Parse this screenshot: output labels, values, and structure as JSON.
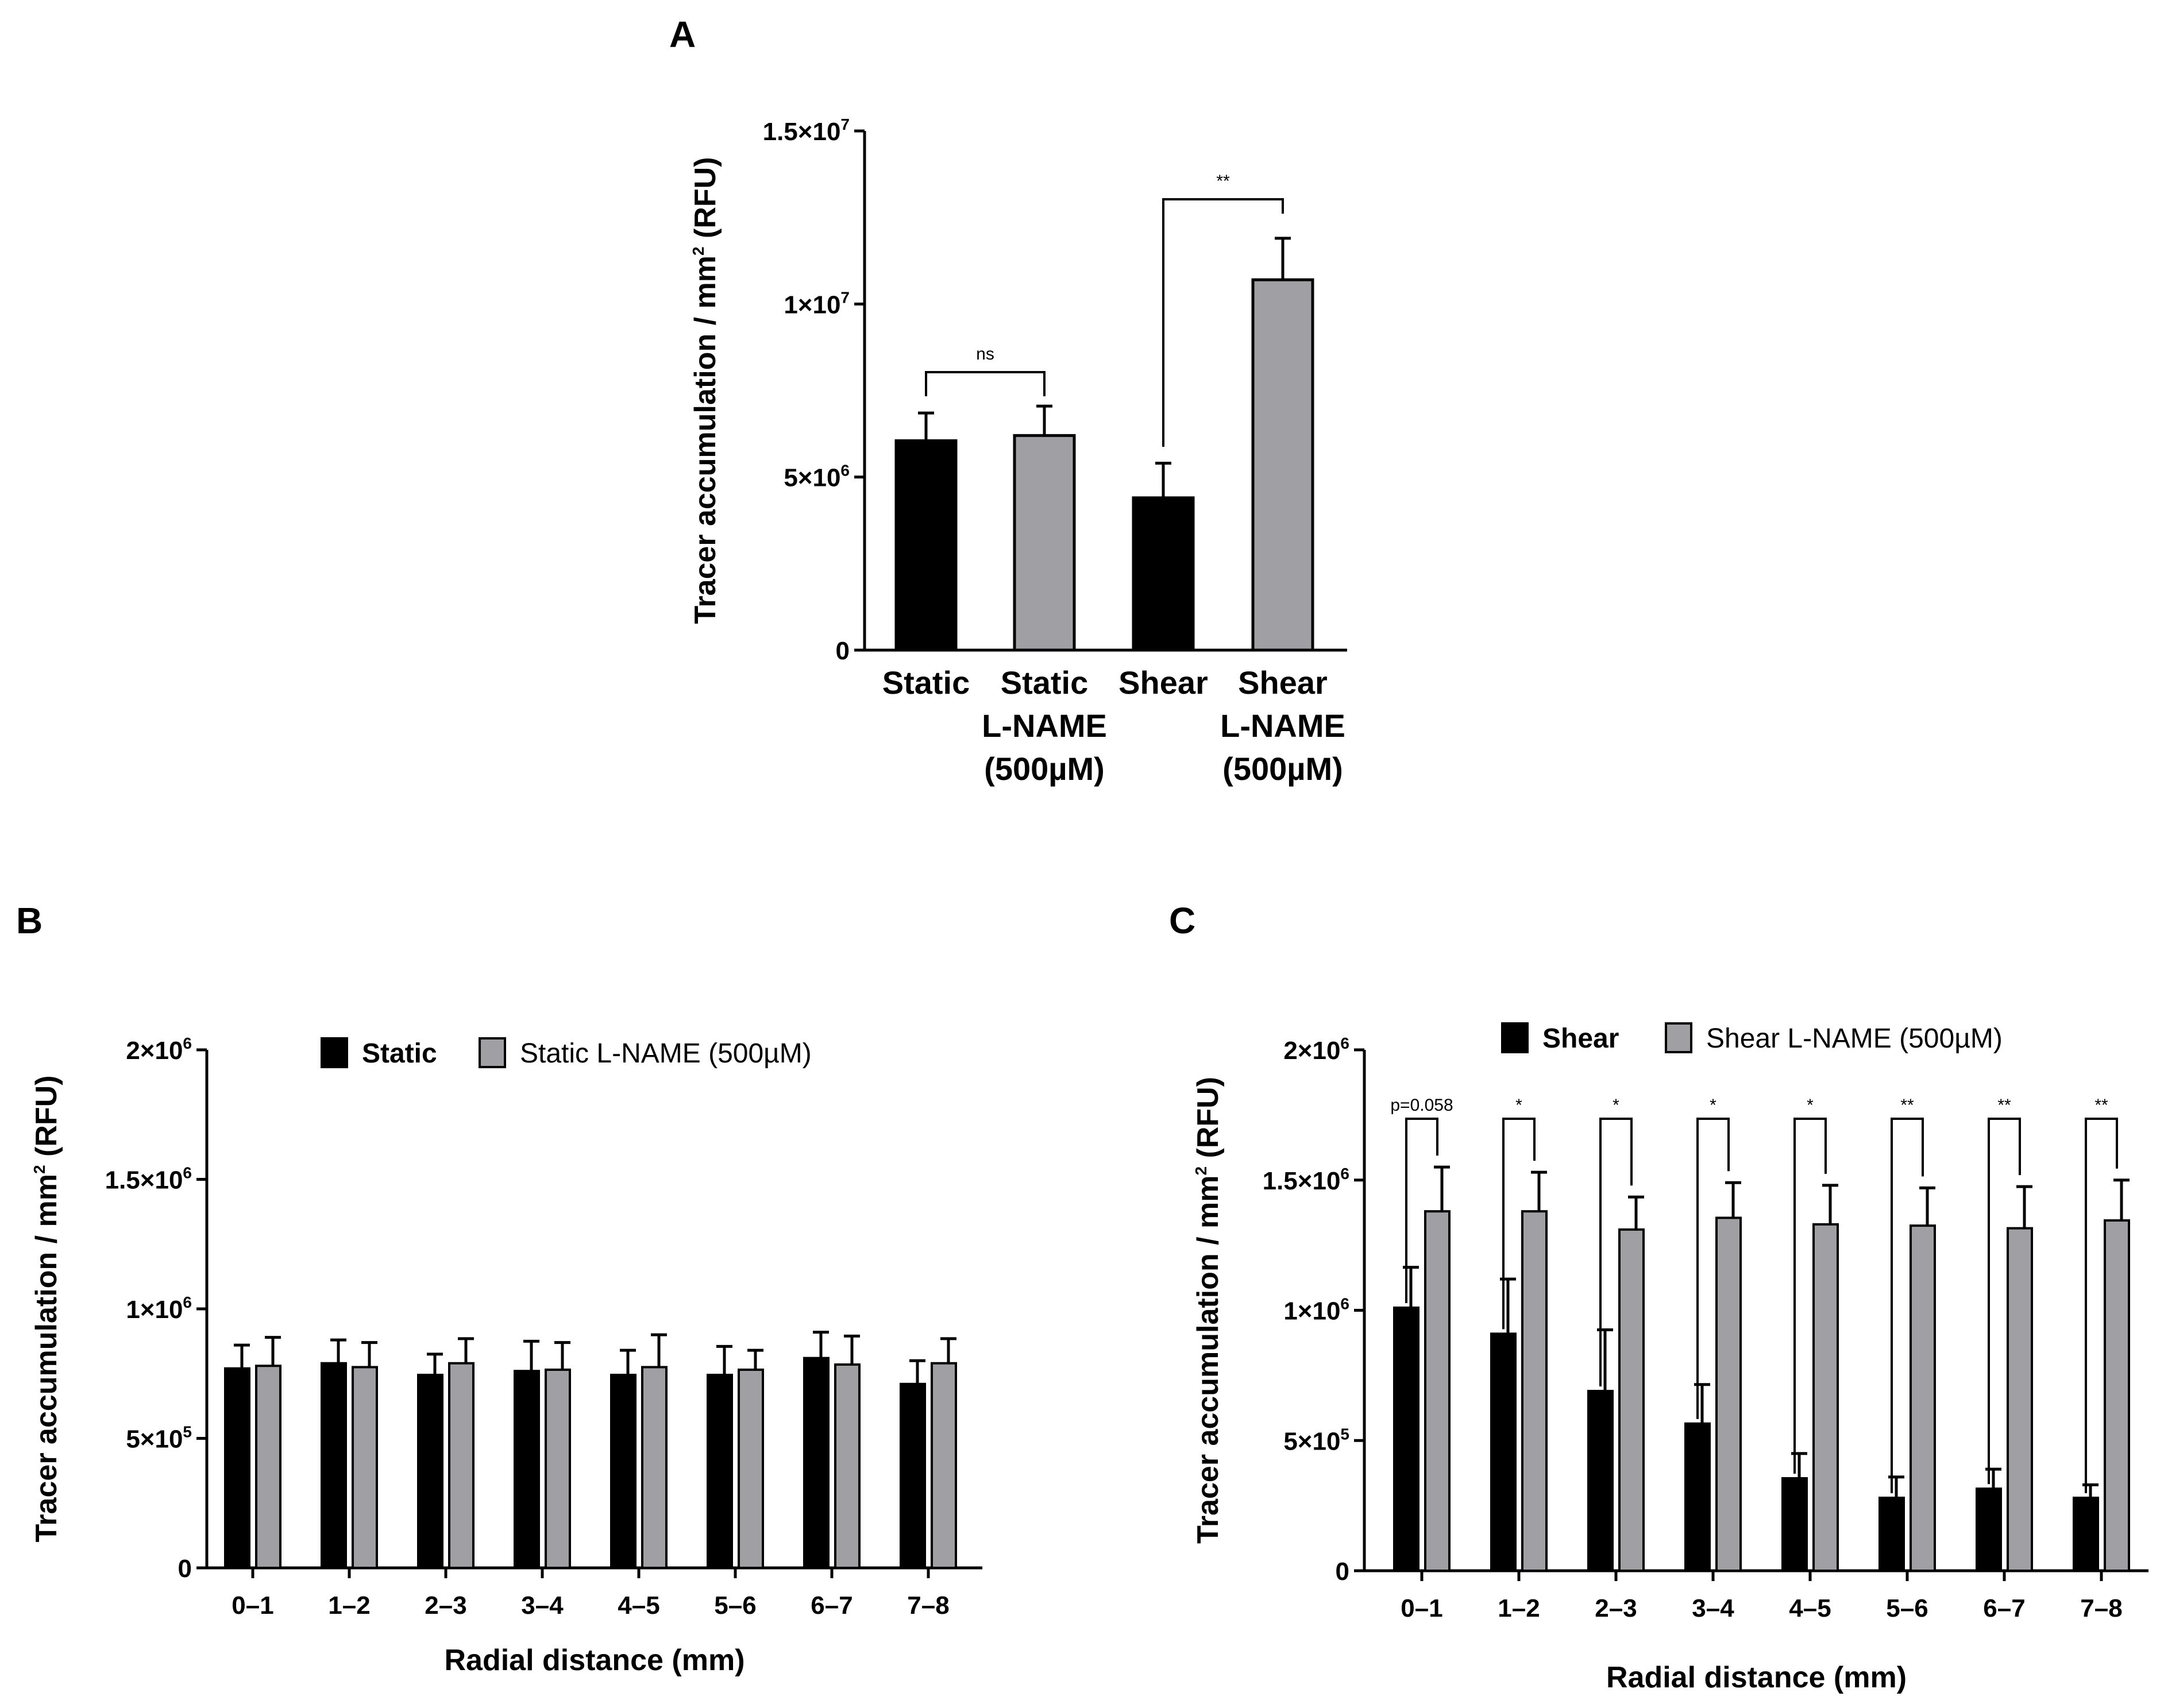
{
  "colors": {
    "series1": "#000000",
    "series2": "#a0a0a4",
    "axis": "#000000"
  },
  "panel_letters": {
    "a": "A",
    "b": "B",
    "c": "C"
  },
  "chart_data": [
    {
      "panel": "A",
      "type": "bar",
      "ylabel_main": "Tracer accumulation / mm",
      "ylabel_sup": "2",
      "ylabel_tail": " (RFU)",
      "ylim": [
        0,
        15000000
      ],
      "yticks": [
        {
          "value": 0,
          "base": "0",
          "exp": ""
        },
        {
          "value": 5000000,
          "base": "5×10",
          "exp": "6"
        },
        {
          "value": 10000000,
          "base": "1×10",
          "exp": "7"
        },
        {
          "value": 15000000,
          "base": "1.5×10",
          "exp": "7"
        }
      ],
      "categories": [
        {
          "lines": [
            "Static"
          ],
          "value": 6050000,
          "error": 800000,
          "color": "#000000"
        },
        {
          "lines": [
            "Static",
            "L-NAME",
            "(500µM)"
          ],
          "value": 6200000,
          "error": 850000,
          "color": "#a0a0a4"
        },
        {
          "lines": [
            "Shear"
          ],
          "value": 4400000,
          "error": 1000000,
          "color": "#000000"
        },
        {
          "lines": [
            "Shear",
            "L-NAME",
            "(500µM)"
          ],
          "value": 10700000,
          "error": 1200000,
          "color": "#a0a0a4"
        }
      ],
      "comparisons": [
        {
          "from": 0,
          "to": 1,
          "label": "ns"
        },
        {
          "from": 2,
          "to": 3,
          "label": "**"
        }
      ]
    },
    {
      "panel": "B",
      "type": "bar",
      "xlabel": "Radial distance (mm)",
      "ylabel_main": "Tracer accumulation / mm",
      "ylabel_sup": "2",
      "ylabel_tail": " (RFU)",
      "ylim": [
        0,
        2000000
      ],
      "yticks": [
        {
          "value": 0,
          "base": "0",
          "exp": ""
        },
        {
          "value": 500000,
          "base": "5×10",
          "exp": "5"
        },
        {
          "value": 1000000,
          "base": "1×10",
          "exp": "6"
        },
        {
          "value": 1500000,
          "base": "1.5×10",
          "exp": "6"
        },
        {
          "value": 2000000,
          "base": "2×10",
          "exp": "6"
        }
      ],
      "categories": [
        "0–1",
        "1–2",
        "2–3",
        "3–4",
        "4–5",
        "5–6",
        "6–7",
        "7–8"
      ],
      "series": [
        {
          "name": "Static",
          "color": "#000000",
          "values": [
            770000,
            790000,
            745000,
            760000,
            745000,
            745000,
            810000,
            710000
          ],
          "errors": [
            90000,
            90000,
            80000,
            115000,
            95000,
            110000,
            100000,
            90000
          ]
        },
        {
          "name": "Static L-NAME (500µM)",
          "color": "#a0a0a4",
          "values": [
            780000,
            775000,
            790000,
            765000,
            775000,
            765000,
            785000,
            790000
          ],
          "errors": [
            110000,
            95000,
            95000,
            105000,
            125000,
            75000,
            110000,
            95000
          ]
        }
      ]
    },
    {
      "panel": "C",
      "type": "bar",
      "xlabel": "Radial distance (mm)",
      "ylabel_main": "Tracer accumulation / mm",
      "ylabel_sup": "2",
      "ylabel_tail": " (RFU)",
      "ylim": [
        0,
        2000000
      ],
      "yticks": [
        {
          "value": 0,
          "base": "0",
          "exp": ""
        },
        {
          "value": 500000,
          "base": "5×10",
          "exp": "5"
        },
        {
          "value": 1000000,
          "base": "1×10",
          "exp": "6"
        },
        {
          "value": 1500000,
          "base": "1.5×10",
          "exp": "6"
        },
        {
          "value": 2000000,
          "base": "2×10",
          "exp": "6"
        }
      ],
      "categories": [
        "0–1",
        "1–2",
        "2–3",
        "3–4",
        "4–5",
        "5–6",
        "6–7",
        "7–8"
      ],
      "series": [
        {
          "name": "Shear",
          "color": "#000000",
          "values": [
            1010000,
            910000,
            690000,
            565000,
            355000,
            280000,
            315000,
            280000
          ],
          "errors": [
            155000,
            210000,
            235000,
            150000,
            95000,
            80000,
            75000,
            50000
          ]
        },
        {
          "name": "Shear L-NAME (500µM)",
          "color": "#a0a0a4",
          "values": [
            1380000,
            1380000,
            1310000,
            1355000,
            1330000,
            1325000,
            1315000,
            1345000
          ],
          "errors": [
            170000,
            150000,
            125000,
            135000,
            150000,
            145000,
            160000,
            155000
          ]
        }
      ],
      "significance": [
        "p=0.058",
        "*",
        "*",
        "*",
        "*",
        "**",
        "**",
        "**"
      ]
    }
  ]
}
